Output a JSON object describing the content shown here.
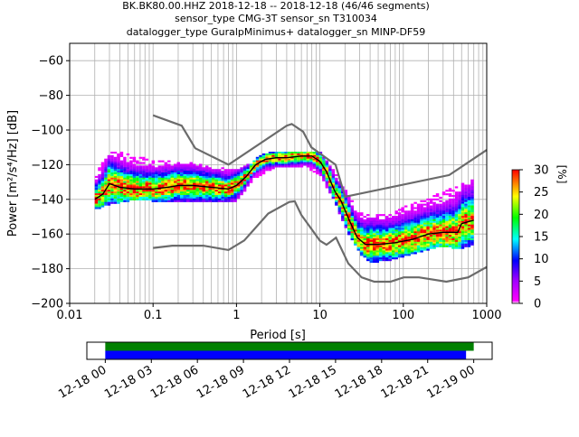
{
  "title": {
    "line1": "BK.BK80.00.HHZ   2018-12-18 -- 2018-12-18  (46/46 segments)",
    "line2": "sensor_type CMG-3T sensor_sn T310034",
    "line3": "datalogger_type GuralpMinimus+ datalogger_sn MINP-DF59"
  },
  "colors": {
    "noise_model": "#6b6b6b",
    "mode_line": "#000000",
    "grid": "#b0b0b0",
    "coverage_top": "#008000",
    "coverage_bottom": "#0000ff"
  },
  "chart_data": [
    {
      "type": "heatmap",
      "xlabel": "Period [s]",
      "ylabel": "Power [m²/s⁴/Hz] [dB]",
      "xscale": "log",
      "xlim": [
        0.01,
        1000
      ],
      "ylim": [
        -200,
        -50
      ],
      "x_ticks": [
        {
          "value": 0.01,
          "label": "0.01"
        },
        {
          "value": 0.1,
          "label": "0.1"
        },
        {
          "value": 1,
          "label": "1"
        },
        {
          "value": 10,
          "label": "10"
        },
        {
          "value": 100,
          "label": "100"
        },
        {
          "value": 1000,
          "label": "1000"
        }
      ],
      "y_ticks": [
        {
          "value": -60,
          "label": "−60"
        },
        {
          "value": -80,
          "label": "−80"
        },
        {
          "value": -100,
          "label": "−100"
        },
        {
          "value": -120,
          "label": "−120"
        },
        {
          "value": -140,
          "label": "−140"
        },
        {
          "value": -160,
          "label": "−160"
        },
        {
          "value": -180,
          "label": "−180"
        },
        {
          "value": -200,
          "label": "−200"
        }
      ],
      "grid": true,
      "colorbar": {
        "label": "[%]",
        "range": [
          0,
          30
        ],
        "ticks": [
          {
            "value": 0,
            "label": "0"
          },
          {
            "value": 5,
            "label": "5"
          },
          {
            "value": 10,
            "label": "10"
          },
          {
            "value": 15,
            "label": "15"
          },
          {
            "value": 20,
            "label": "20"
          },
          {
            "value": 25,
            "label": "25"
          },
          {
            "value": 30,
            "label": "30"
          }
        ]
      },
      "series": [
        {
          "role": "high-noise-model",
          "points": [
            [
              0.1,
              -91.5
            ],
            [
              0.22,
              -97.5
            ],
            [
              0.32,
              -110.5
            ],
            [
              0.8,
              -120
            ],
            [
              4,
              -97.5
            ],
            [
              4.6,
              -96.5
            ],
            [
              6.3,
              -101
            ],
            [
              7.9,
              -110
            ],
            [
              15.4,
              -120
            ],
            [
              20,
              -138.5
            ],
            [
              354.8,
              -126
            ],
            [
              1000,
              -111.5
            ]
          ]
        },
        {
          "role": "low-noise-model",
          "points": [
            [
              0.1,
              -168
            ],
            [
              0.17,
              -166.7
            ],
            [
              0.4,
              -166.7
            ],
            [
              0.8,
              -169.2
            ],
            [
              1.24,
              -163.7
            ],
            [
              2.4,
              -148.2
            ],
            [
              4.3,
              -141.5
            ],
            [
              5,
              -141.1
            ],
            [
              6,
              -149
            ],
            [
              10,
              -163.8
            ],
            [
              12,
              -166.2
            ],
            [
              15.6,
              -162.1
            ],
            [
              21.9,
              -177
            ],
            [
              31.6,
              -185
            ],
            [
              45,
              -187.5
            ],
            [
              70,
              -187.5
            ],
            [
              101,
              -185
            ],
            [
              154,
              -185
            ],
            [
              328,
              -187.5
            ],
            [
              600,
              -185
            ],
            [
              1000,
              -179
            ]
          ]
        },
        {
          "role": "mode",
          "points": [
            [
              0.02,
              -140
            ],
            [
              0.025,
              -137
            ],
            [
              0.03,
              -131
            ],
            [
              0.04,
              -133
            ],
            [
              0.06,
              -134
            ],
            [
              0.1,
              -134
            ],
            [
              0.15,
              -133
            ],
            [
              0.2,
              -132
            ],
            [
              0.3,
              -132
            ],
            [
              0.5,
              -133
            ],
            [
              0.8,
              -134
            ],
            [
              1,
              -132
            ],
            [
              1.3,
              -127
            ],
            [
              1.7,
              -120
            ],
            [
              2.2,
              -117
            ],
            [
              3,
              -116
            ],
            [
              4,
              -116
            ],
            [
              6,
              -115
            ],
            [
              8,
              -115
            ],
            [
              10,
              -118
            ],
            [
              12,
              -124
            ],
            [
              15,
              -135
            ],
            [
              18,
              -141
            ],
            [
              22,
              -151
            ],
            [
              28,
              -162
            ],
            [
              35,
              -166
            ],
            [
              50,
              -166
            ],
            [
              80,
              -165
            ],
            [
              130,
              -163
            ],
            [
              200,
              -160
            ],
            [
              300,
              -159
            ],
            [
              450,
              -159
            ],
            [
              500,
              -154
            ],
            [
              700,
              -152
            ]
          ]
        },
        {
          "role": "density-upper-edge",
          "points": [
            [
              0.02,
              -128
            ],
            [
              0.03,
              -112
            ],
            [
              0.05,
              -115
            ],
            [
              0.1,
              -118
            ],
            [
              0.3,
              -120
            ],
            [
              1,
              -124
            ],
            [
              1.5,
              -120
            ],
            [
              2,
              -115
            ],
            [
              3,
              -113
            ],
            [
              6,
              -113
            ],
            [
              10,
              -113
            ],
            [
              15,
              -125
            ],
            [
              20,
              -135
            ],
            [
              30,
              -148
            ],
            [
              60,
              -150
            ],
            [
              100,
              -145
            ],
            [
              200,
              -140
            ],
            [
              500,
              -132
            ],
            [
              700,
              -128
            ]
          ]
        },
        {
          "role": "density-lower-edge",
          "points": [
            [
              0.02,
              -145
            ],
            [
              0.03,
              -142
            ],
            [
              0.05,
              -140
            ],
            [
              0.1,
              -140
            ],
            [
              0.5,
              -141
            ],
            [
              1,
              -140
            ],
            [
              1.5,
              -130
            ],
            [
              2,
              -125
            ],
            [
              3,
              -121
            ],
            [
              6,
              -120
            ],
            [
              10,
              -125
            ],
            [
              15,
              -140
            ],
            [
              20,
              -155
            ],
            [
              30,
              -170
            ],
            [
              40,
              -176
            ],
            [
              70,
              -174
            ],
            [
              150,
              -170
            ],
            [
              300,
              -166
            ],
            [
              500,
              -168
            ],
            [
              700,
              -165
            ]
          ]
        }
      ]
    },
    {
      "type": "bar",
      "role": "data-coverage",
      "x_ticks": [
        {
          "label": "12-18 00"
        },
        {
          "label": "12-18 03"
        },
        {
          "label": "12-18 06"
        },
        {
          "label": "12-18 09"
        },
        {
          "label": "12-18 12"
        },
        {
          "label": "12-18 15"
        },
        {
          "label": "12-18 18"
        },
        {
          "label": "12-18 21"
        },
        {
          "label": "12-19 00"
        }
      ],
      "xlim_hours": [
        -1.2,
        25.2
      ],
      "bars": [
        {
          "row": "top",
          "start_hour": 0,
          "end_hour": 24.0
        },
        {
          "row": "bottom",
          "start_hour": 0,
          "end_hour": 23.5
        }
      ]
    }
  ]
}
